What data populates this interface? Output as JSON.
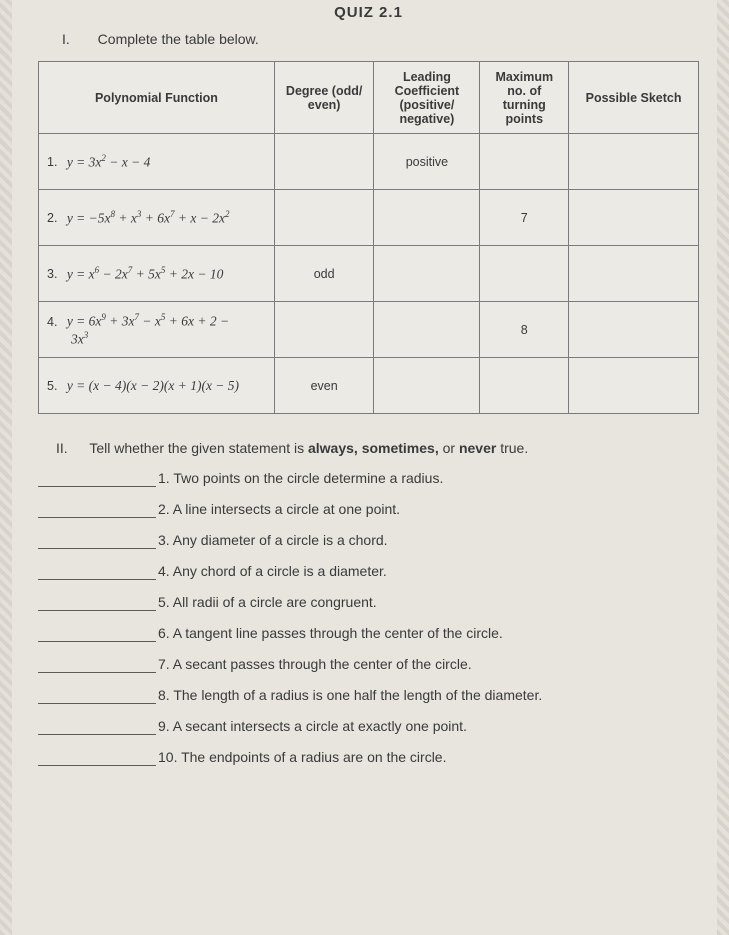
{
  "header": {
    "quiz_title": "QUIZ 2.1",
    "section1_roman": "I.",
    "section1_text": "Complete the table below."
  },
  "table": {
    "col_widths": [
      "218px",
      "92px",
      "98px",
      "82px",
      "120px"
    ],
    "headers": {
      "c1": "Polynomial Function",
      "c2": "Degree (odd/ even)",
      "c3": "Leading Coefficient (positive/ negative)",
      "c4": "Maximum no. of turning points",
      "c5": "Possible Sketch"
    },
    "rows": [
      {
        "num": "1.",
        "func_html": "y = 3x<sup>2</sup> − x − 4",
        "degree": "",
        "coef": "positive",
        "turn": "",
        "sketch": ""
      },
      {
        "num": "2.",
        "func_html": "y = −5x<sup>8</sup> + x<sup>3</sup> + 6x<sup>7</sup> + x − 2x<sup>2</sup>",
        "degree": "",
        "coef": "",
        "turn": "7",
        "sketch": ""
      },
      {
        "num": "3.",
        "func_html": "y = x<sup>6</sup> − 2x<sup>7</sup> + 5x<sup>5</sup> + 2x − 10",
        "degree": "odd",
        "coef": "",
        "turn": "",
        "sketch": ""
      },
      {
        "num": "4.",
        "func_html": "y = 6x<sup>9</sup> + 3x<sup>7</sup> − x<sup>5</sup> + 6x + 2 −<span class=\"frac-bottom\">3x<sup>3</sup></span>",
        "degree": "",
        "coef": "",
        "turn": "8",
        "sketch": ""
      },
      {
        "num": "5.",
        "func_html": "y = (x − 4)(x − 2)(x + 1)(x − 5)",
        "degree": "even",
        "coef": "",
        "turn": "",
        "sketch": ""
      }
    ]
  },
  "section2": {
    "roman": "II.",
    "intro_pre": "Tell whether the given statement is ",
    "intro_bold": "always, sometimes,",
    "intro_mid": " or ",
    "intro_bold2": "never",
    "intro_post": " true.",
    "items": [
      {
        "n": "1.",
        "t": "Two points on the circle determine a radius."
      },
      {
        "n": "2.",
        "t": "A line intersects a circle at one point."
      },
      {
        "n": "3.",
        "t": "Any diameter of a circle is a chord."
      },
      {
        "n": "4.",
        "t": "Any chord of a circle is a diameter."
      },
      {
        "n": "5.",
        "t": "All radii of a circle are congruent."
      },
      {
        "n": "6.",
        "t": "A tangent line passes through the center of the circle."
      },
      {
        "n": "7.",
        "t": "A secant passes through the center of the circle."
      },
      {
        "n": "8.",
        "t": "The length of a radius is one half the length of the diameter."
      },
      {
        "n": "9.",
        "t": "A secant intersects a circle at exactly one point."
      },
      {
        "n": "10.",
        "t": "The endpoints of a radius are on the circle."
      }
    ]
  }
}
